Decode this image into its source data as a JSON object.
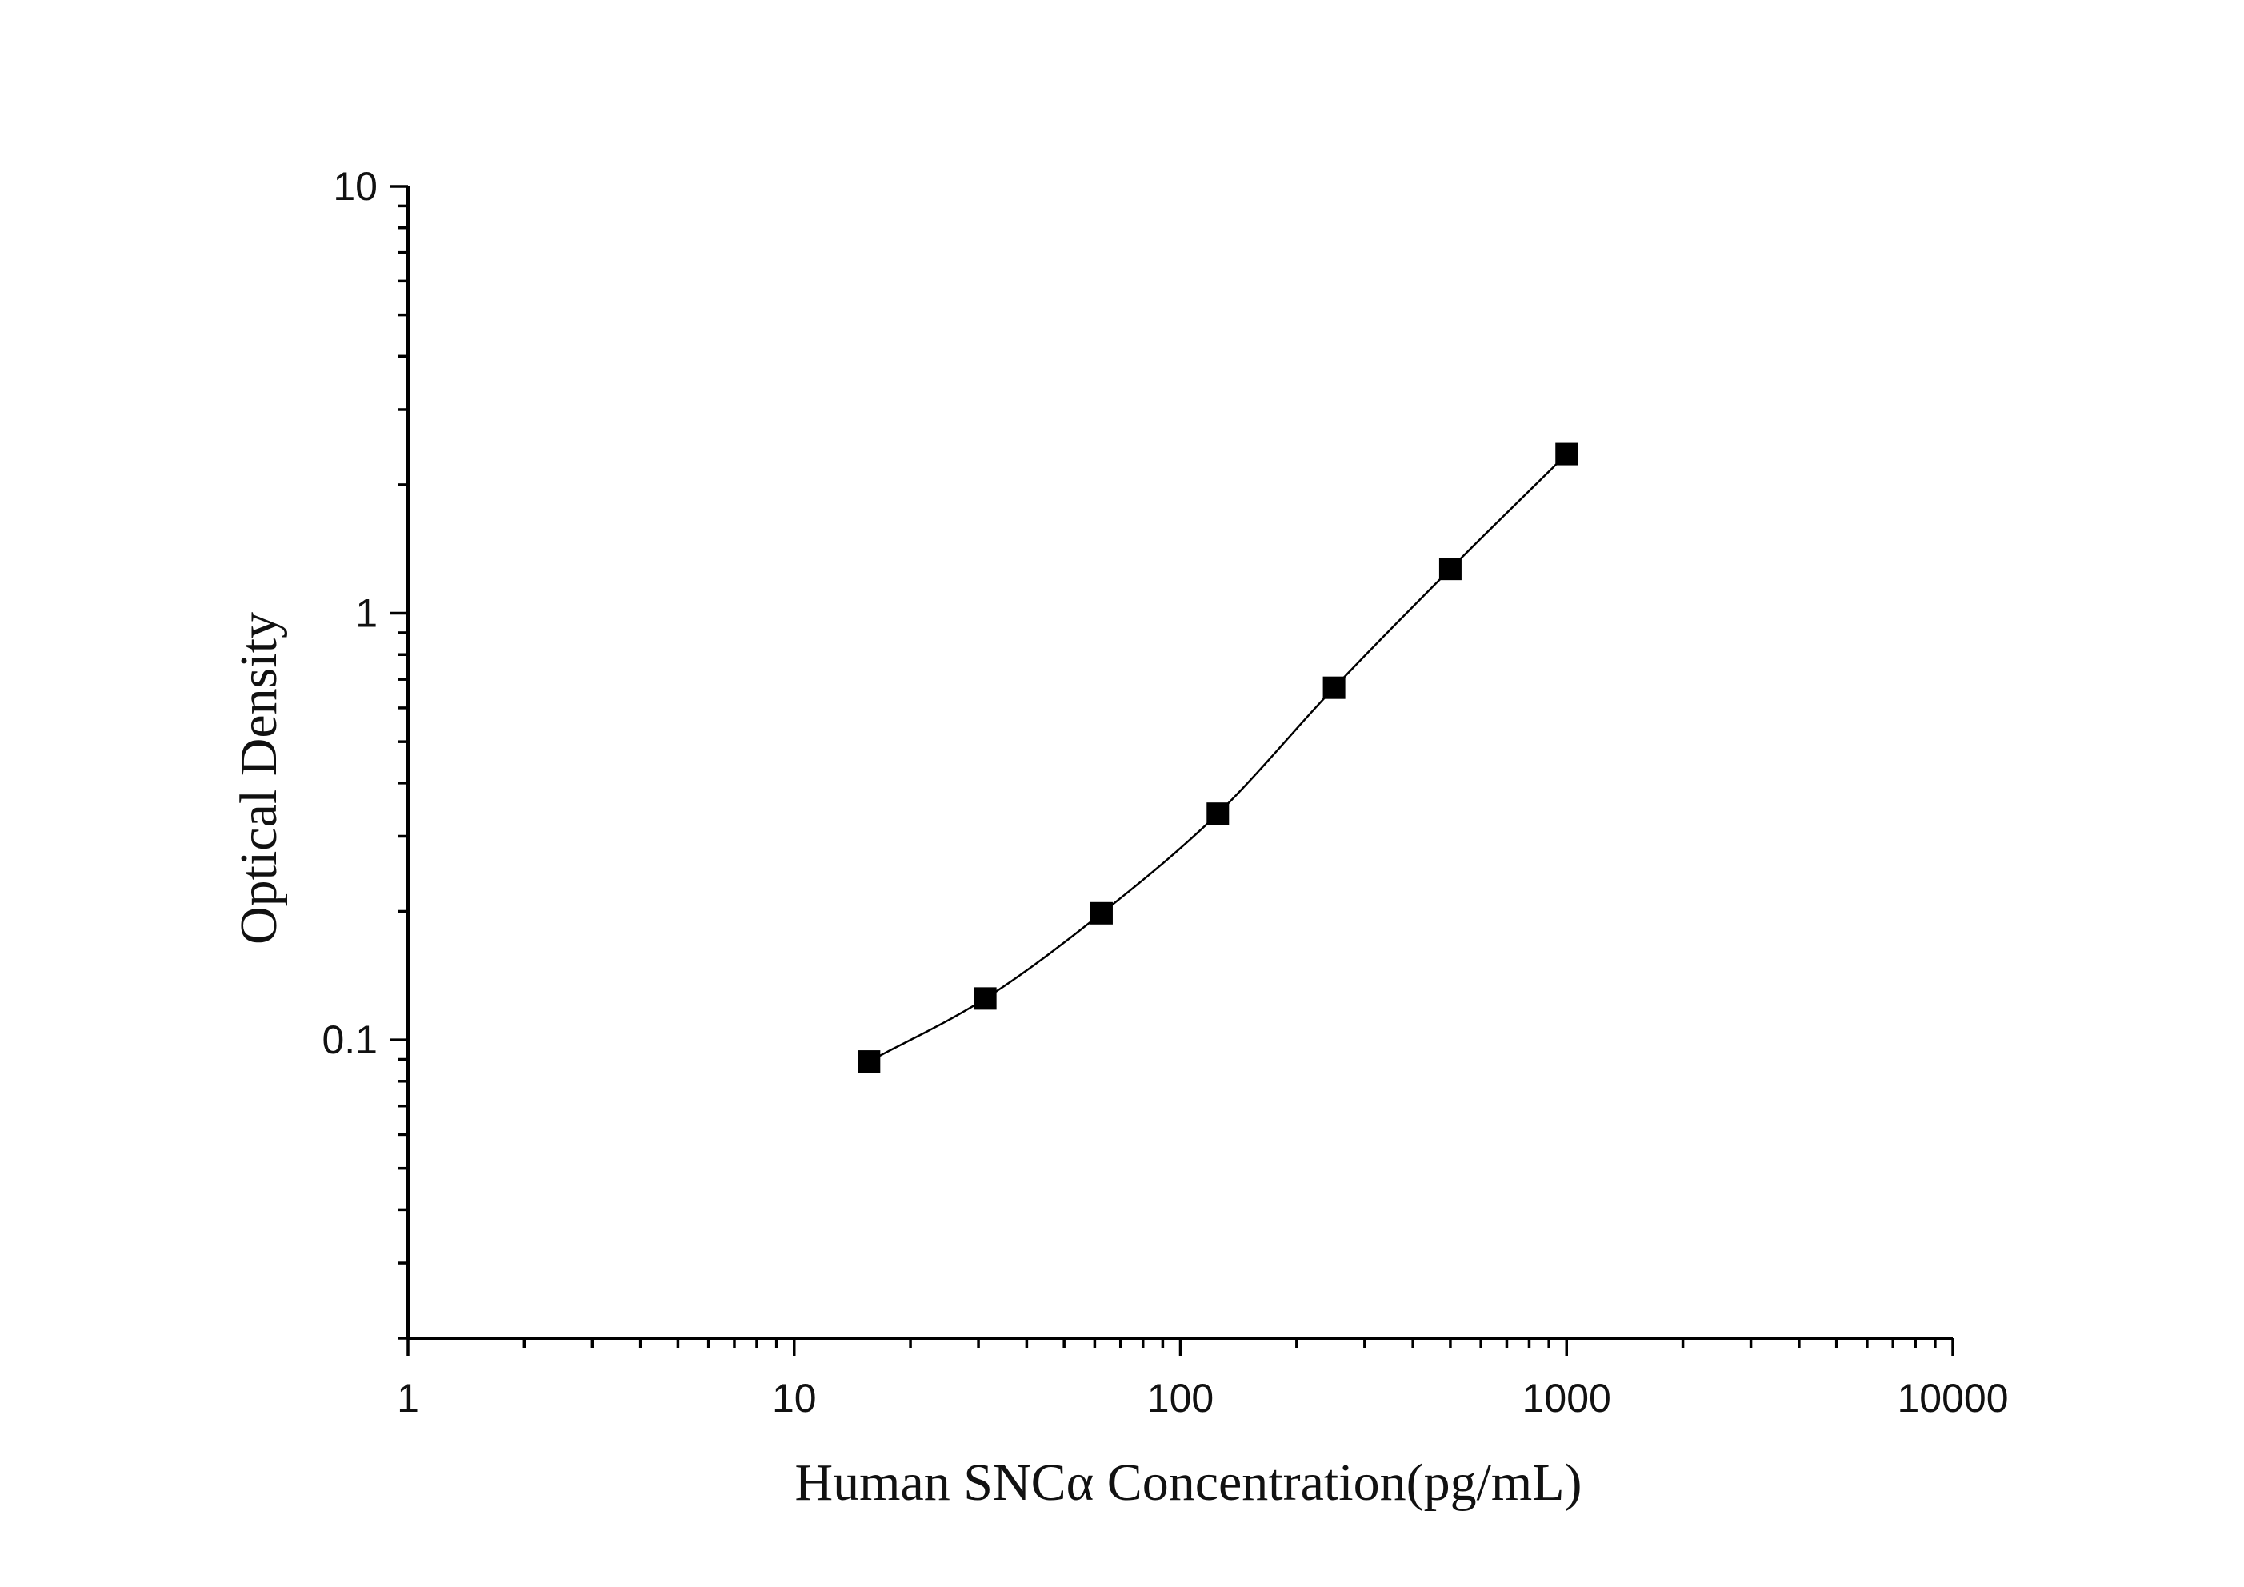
{
  "chart_data": {
    "type": "scatter",
    "title": "",
    "xlabel": "Human SNCα Concentration(pg/mL)",
    "ylabel": "Optical Density",
    "x_scale": "log",
    "y_scale": "log",
    "xlim": [
      1,
      10000
    ],
    "ylim": [
      0.02,
      10
    ],
    "x_ticks": [
      "1",
      "10",
      "100",
      "1000",
      "10000"
    ],
    "y_ticks": [
      "0.1",
      "1",
      "10"
    ],
    "grid": false,
    "legend": "none",
    "series": [
      {
        "x": [
          15.625,
          31.25,
          62.5,
          125,
          250,
          500,
          1000
        ],
        "y": [
          0.089,
          0.125,
          0.198,
          0.339,
          0.669,
          1.27,
          2.36
        ],
        "marker": "square",
        "fit_curve": true
      }
    ],
    "colors": {
      "marker": "#000000",
      "curve": "#000000",
      "axis": "#000000"
    }
  }
}
